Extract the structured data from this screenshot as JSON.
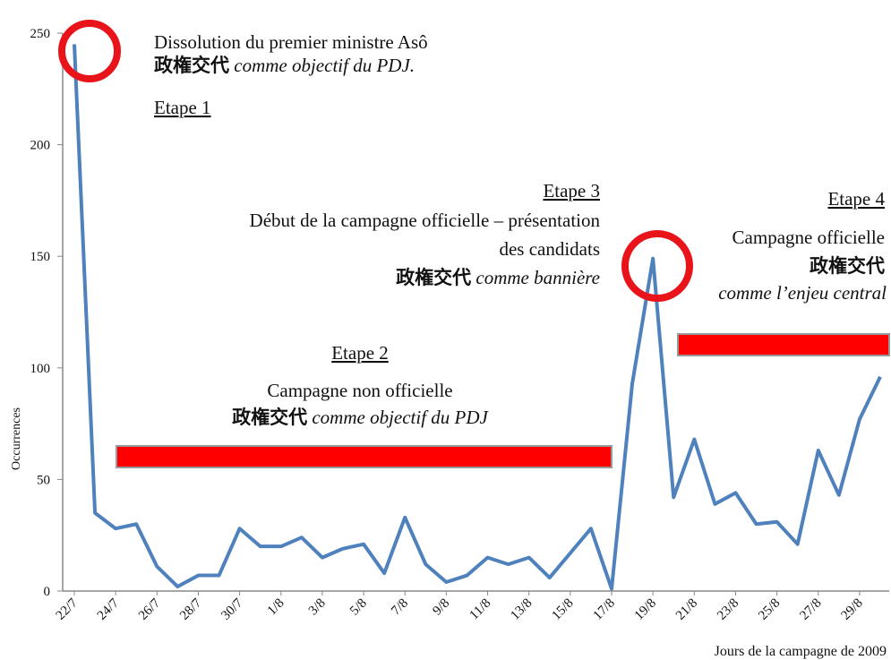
{
  "chart_data": {
    "type": "line",
    "y_label": "Occurrences",
    "x_label": "Jours de la campagne de 2009",
    "categories": [
      "22/7",
      null,
      "24/7",
      null,
      "26/7",
      null,
      "28/7",
      null,
      "30/7",
      null,
      "1/8",
      null,
      "3/8",
      null,
      "5/8",
      null,
      "7/8",
      null,
      "9/8",
      null,
      "11/8",
      null,
      "13/8",
      null,
      "15/8",
      null,
      "17/8",
      null,
      "19/8",
      null,
      "21/8",
      null,
      "23/8",
      null,
      "25/8",
      null,
      "27/8",
      null,
      "29/8",
      null
    ],
    "values": [
      245,
      35,
      28,
      30,
      11,
      2,
      7,
      7,
      28,
      20,
      20,
      24,
      15,
      19,
      21,
      8,
      33,
      12,
      4,
      7,
      15,
      12,
      15,
      6,
      17,
      28,
      1,
      93,
      149,
      42,
      68,
      39,
      44,
      30,
      31,
      21,
      63,
      43,
      77,
      96
    ],
    "color": "#4f81bd",
    "ylim": [
      0,
      250
    ],
    "yticks": [
      0,
      50,
      100,
      150,
      200,
      250
    ],
    "annotations": [
      {
        "stage": "Etape 1",
        "text": "Dissolution du premier ministre Asô",
        "kanji": "政権交代",
        "italic": "comme objectif du PDJ."
      },
      {
        "stage": "Etape 2",
        "text": "Campagne non officielle",
        "kanji": "政権交代",
        "italic": "comme objectif du PDJ"
      },
      {
        "stage": "Etape 3",
        "text": "Début de la campagne officielle – présentation",
        "text2": "des candidats",
        "kanji": "政権交代",
        "italic": "comme bannière"
      },
      {
        "stage": "Etape 4",
        "text": "Campagne officielle",
        "kanji": "政権交代",
        "italic": "comme l’enjeu central"
      }
    ]
  }
}
